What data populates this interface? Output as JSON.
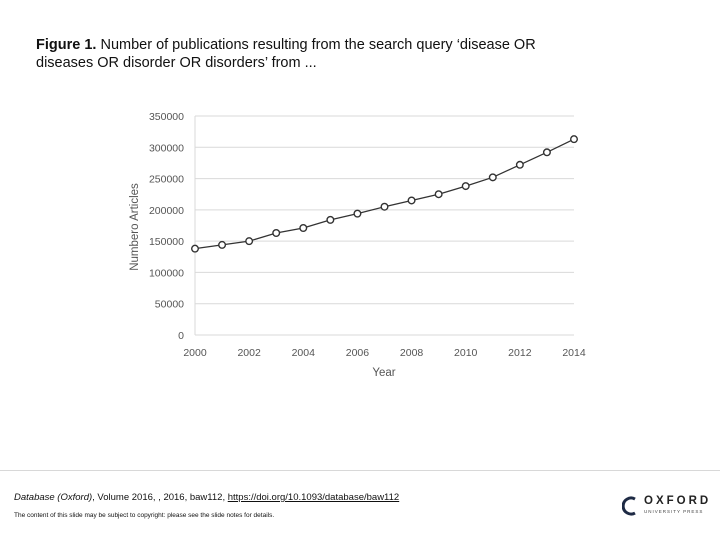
{
  "caption": {
    "lead": "Figure 1.",
    "text": " Number of publications resulting from the search query ‘disease OR diseases OR disorder OR disorders’ from ..."
  },
  "chart_data": {
    "type": "line",
    "title": "",
    "xlabel": "Year",
    "ylabel": "Numbero Articles",
    "xlim": [
      2000,
      2014
    ],
    "ylim": [
      0,
      350000
    ],
    "x_ticks": [
      "2000",
      "2002",
      "2004",
      "2006",
      "2008",
      "2010",
      "2012",
      "2014"
    ],
    "y_ticks": [
      "0",
      "50000",
      "100000",
      "150000",
      "200000",
      "250000",
      "300000",
      "350000"
    ],
    "x": [
      2000,
      2001,
      2002,
      2003,
      2004,
      2005,
      2006,
      2007,
      2008,
      2009,
      2010,
      2011,
      2012,
      2013,
      2014
    ],
    "series": [
      {
        "values": [
          138000,
          144000,
          150000,
          163000,
          171000,
          184000,
          194000,
          205000,
          215000,
          225000,
          238000,
          252000,
          272000,
          292000,
          313000
        ]
      }
    ],
    "grid": true,
    "legend": "none",
    "colors": {
      "line": "#333333",
      "marker_fill": "#ffffff",
      "grid": "#d9d9d9",
      "text": "#555555"
    }
  },
  "footer": {
    "journal": "Database (Oxford)",
    "citation_rest": ", Volume 2016, , 2016, baw112, ",
    "doi_link": "https://doi.org/10.1093/database/baw112",
    "notice": "The content of this slide may be subject to copyright: please see the slide notes for details."
  },
  "logo": {
    "word": "OXFORD",
    "sub": "UNIVERSITY PRESS",
    "icon": "oxford-logo-icon"
  }
}
